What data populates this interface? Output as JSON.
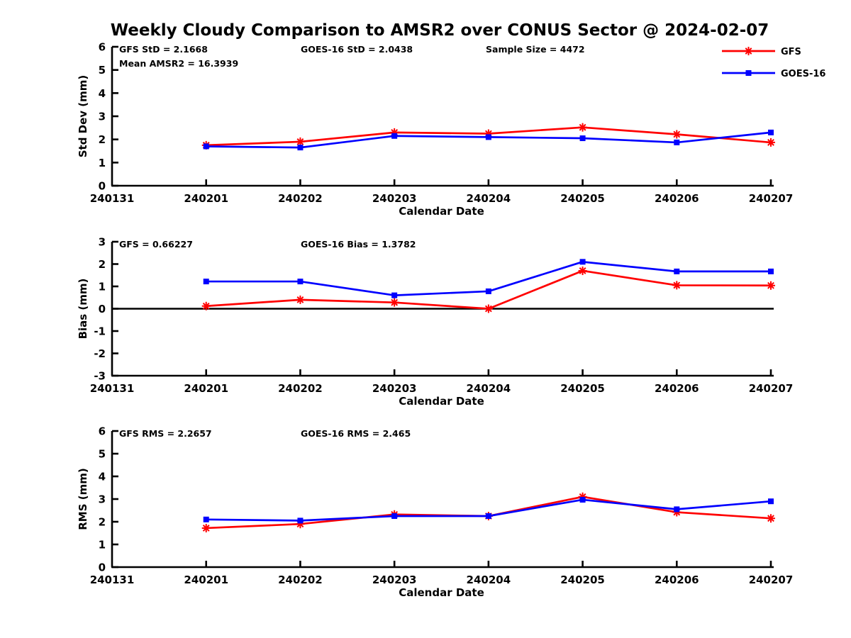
{
  "title": "Weekly Cloudy Comparison to AMSR2 over CONUS Sector @ 2024-02-07",
  "colors": {
    "gfs": "#ff0000",
    "goes16": "#0000ff",
    "axis": "#000000",
    "zero_line": "#000000"
  },
  "legend": {
    "position": "top-right",
    "items": [
      {
        "label": "GFS",
        "color": "#ff0000",
        "marker": "asterisk"
      },
      {
        "label": "GOES-16",
        "color": "#0000ff",
        "marker": "square"
      }
    ]
  },
  "x_axis": {
    "label": "Calendar Date",
    "categories": [
      "240131",
      "240201",
      "240202",
      "240203",
      "240204",
      "240205",
      "240206",
      "240207"
    ]
  },
  "chart_data": [
    {
      "type": "line",
      "name": "std-dev",
      "ylabel": "Std Dev (mm)",
      "ylim": [
        0,
        6
      ],
      "yticks": [
        0,
        1,
        2,
        3,
        4,
        5,
        6
      ],
      "x": [
        "240201",
        "240202",
        "240203",
        "240204",
        "240205",
        "240206",
        "240207"
      ],
      "series": [
        {
          "name": "GFS",
          "color": "#ff0000",
          "marker": "asterisk",
          "values": [
            1.75,
            1.9,
            2.3,
            2.25,
            2.52,
            2.22,
            1.87
          ]
        },
        {
          "name": "GOES-16",
          "color": "#0000ff",
          "marker": "square",
          "values": [
            1.7,
            1.65,
            2.15,
            2.1,
            2.05,
            1.87,
            2.3
          ]
        }
      ],
      "annotations": [
        {
          "text": "GFS StD = 2.1668",
          "slot": 0,
          "row": 0
        },
        {
          "text": "Mean AMSR2 = 16.3939",
          "slot": 0,
          "row": 1
        },
        {
          "text": "GOES-16 StD = 2.0438",
          "slot": 1,
          "row": 0
        },
        {
          "text": "Sample Size = 4472",
          "slot": 2,
          "row": 0
        }
      ],
      "zero_line": false,
      "show_legend": true,
      "grid": false
    },
    {
      "type": "line",
      "name": "bias",
      "ylabel": "Bias (mm)",
      "ylim": [
        -3,
        3
      ],
      "yticks": [
        -3,
        -2,
        -1,
        0,
        1,
        2,
        3
      ],
      "x": [
        "240201",
        "240202",
        "240203",
        "240204",
        "240205",
        "240206",
        "240207"
      ],
      "series": [
        {
          "name": "GFS",
          "color": "#ff0000",
          "marker": "asterisk",
          "values": [
            0.12,
            0.4,
            0.28,
            0.0,
            1.7,
            1.05,
            1.04
          ]
        },
        {
          "name": "GOES-16",
          "color": "#0000ff",
          "marker": "square",
          "values": [
            1.22,
            1.22,
            0.6,
            0.78,
            2.1,
            1.67,
            1.67
          ]
        }
      ],
      "annotations": [
        {
          "text": "GFS = 0.66227",
          "slot": 0,
          "row": 0
        },
        {
          "text": "GOES-16 Bias  = 1.3782",
          "slot": 1,
          "row": 0
        }
      ],
      "zero_line": true,
      "show_legend": false,
      "grid": false
    },
    {
      "type": "line",
      "name": "rms",
      "ylabel": "RMS (mm)",
      "ylim": [
        0,
        6
      ],
      "yticks": [
        0,
        1,
        2,
        3,
        4,
        5,
        6
      ],
      "x": [
        "240201",
        "240202",
        "240203",
        "240204",
        "240205",
        "240206",
        "240207"
      ],
      "series": [
        {
          "name": "GFS",
          "color": "#ff0000",
          "marker": "asterisk",
          "values": [
            1.72,
            1.9,
            2.32,
            2.25,
            3.1,
            2.42,
            2.15
          ]
        },
        {
          "name": "GOES-16",
          "color": "#0000ff",
          "marker": "square",
          "values": [
            2.1,
            2.05,
            2.25,
            2.25,
            2.97,
            2.55,
            2.9
          ]
        }
      ],
      "annotations": [
        {
          "text": "GFS RMS = 2.2657",
          "slot": 0,
          "row": 0
        },
        {
          "text": "GOES-16 RMS = 2.465",
          "slot": 1,
          "row": 0
        }
      ],
      "zero_line": false,
      "show_legend": false,
      "grid": false
    }
  ]
}
